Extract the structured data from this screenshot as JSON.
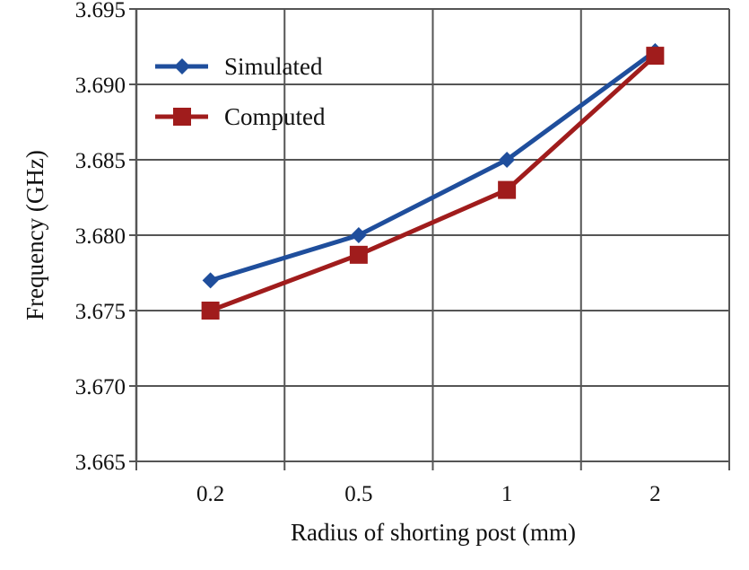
{
  "chart_data": {
    "type": "line",
    "title": "",
    "xlabel": "Radius of shorting post (mm)",
    "ylabel": "Frequency (GHz)",
    "categories": [
      "0.2",
      "0.5",
      "1",
      "2"
    ],
    "ylim": [
      3.665,
      3.695
    ],
    "yticks": [
      "3.665",
      "3.670",
      "3.675",
      "3.680",
      "3.685",
      "3.690",
      "3.695"
    ],
    "grid": true,
    "legend_position": "top-left",
    "series": [
      {
        "name": "Simulated",
        "color": "#1f4e9c",
        "marker": "diamond",
        "values": [
          3.677,
          3.68,
          3.685,
          3.6922
        ]
      },
      {
        "name": "Computed",
        "color": "#a01c1c",
        "marker": "square",
        "values": [
          3.675,
          3.6787,
          3.683,
          3.6919
        ]
      }
    ]
  }
}
